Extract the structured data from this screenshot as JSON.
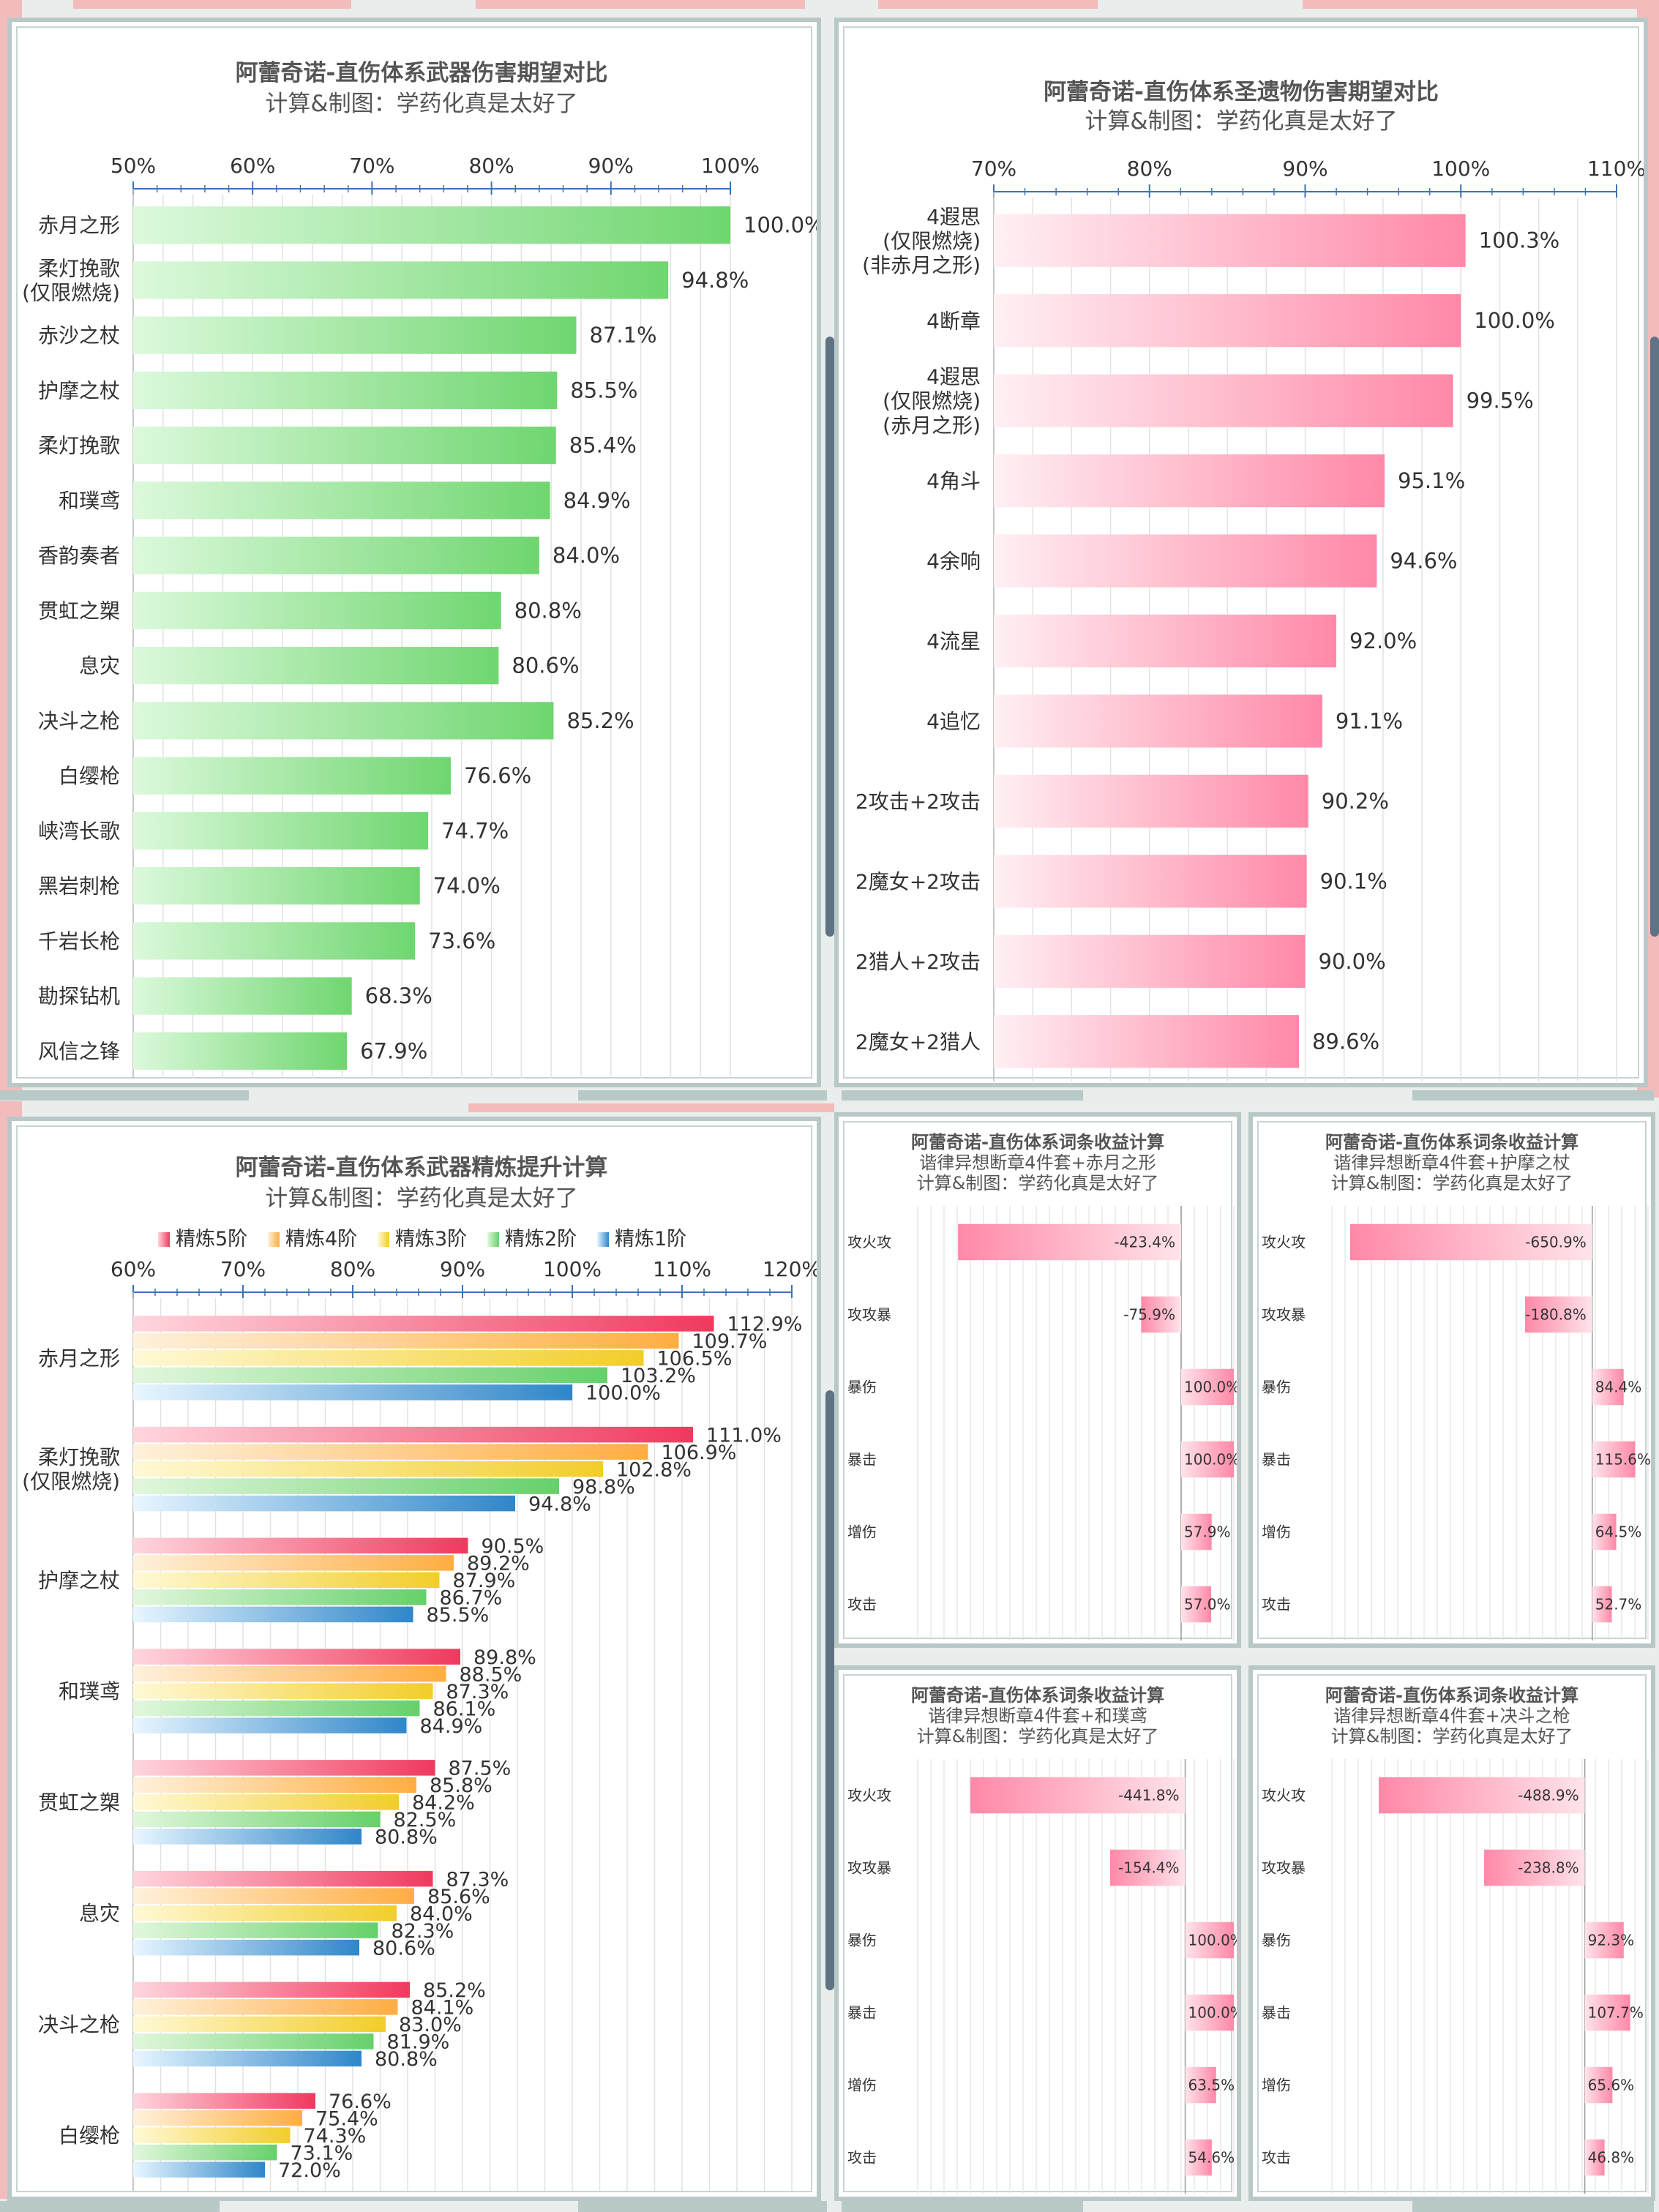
{
  "colors": {
    "green_start": "#dcf9dc",
    "green_end": "#6fd66f",
    "pink_start": "#fff0f3",
    "pink_end": "#ff88a8",
    "refine": {
      "r5": [
        "#ffd6de",
        "#f0395e"
      ],
      "r4": [
        "#fff1dc",
        "#ffad42"
      ],
      "r3": [
        "#fff9d6",
        "#f2cd2a"
      ],
      "r2": [
        "#e2f7dd",
        "#66d06a"
      ],
      "r1": [
        "#e8f6ff",
        "#2f86c9"
      ]
    },
    "axis": "#3a73b8",
    "grid": "#e2e2e2"
  },
  "chart_data": [
    {
      "id": "weapon",
      "type": "bar",
      "orientation": "horizontal",
      "title": "阿蕾奇诺-直伤体系武器伤害期望对比",
      "subtitle": "计算&制图：学药化真是太好了",
      "xlim": [
        50,
        100
      ],
      "ticks": [
        50,
        60,
        70,
        80,
        90,
        100
      ],
      "tick_labels": [
        "50%",
        "60%",
        "70%",
        "80%",
        "90%",
        "100%"
      ],
      "categories": [
        "赤月之形",
        "柔灯挽歌\n(仅限燃烧)",
        "赤沙之杖",
        "护摩之杖",
        "柔灯挽歌",
        "和璞鸢",
        "香韵奏者",
        "贯虹之槊",
        "息灾",
        "决斗之枪",
        "白缨枪",
        "峡湾长歌",
        "黑岩刺枪",
        "千岩长枪",
        "勘探钻机",
        "风信之锋"
      ],
      "values": [
        100.0,
        94.8,
        87.1,
        85.5,
        85.4,
        84.9,
        84.0,
        80.8,
        80.6,
        85.2,
        76.6,
        74.7,
        74.0,
        73.6,
        68.3,
        67.9
      ],
      "labels": [
        "100.0%",
        "94.8%",
        "87.1%",
        "85.5%",
        "85.4%",
        "84.9%",
        "84.0%",
        "80.8%",
        "80.6%",
        "85.2%",
        "76.6%",
        "74.7%",
        "74.0%",
        "73.6%",
        "68.3%",
        "67.9%"
      ]
    },
    {
      "id": "artifact",
      "type": "bar",
      "orientation": "horizontal",
      "title": "阿蕾奇诺-直伤体系圣遗物伤害期望对比",
      "subtitle": "计算&制图：学药化真是太好了",
      "xlim": [
        70,
        110
      ],
      "ticks": [
        70,
        80,
        90,
        100,
        110
      ],
      "tick_labels": [
        "70%",
        "80%",
        "90%",
        "100%",
        "110%"
      ],
      "categories": [
        "4遐思\n(仅限燃烧)\n(非赤月之形)",
        "4断章",
        "4遐思\n(仅限燃烧)\n(赤月之形)",
        "4角斗",
        "4余响",
        "4流星",
        "4追忆",
        "2攻击+2攻击",
        "2魔女+2攻击",
        "2猎人+2攻击",
        "2魔女+2猎人"
      ],
      "values": [
        100.3,
        100.0,
        99.5,
        95.1,
        94.6,
        92.0,
        91.1,
        90.2,
        90.1,
        90.0,
        89.6
      ],
      "labels": [
        "100.3%",
        "100.0%",
        "99.5%",
        "95.1%",
        "94.6%",
        "92.0%",
        "91.1%",
        "90.2%",
        "90.1%",
        "90.0%",
        "89.6%"
      ]
    },
    {
      "id": "refine",
      "type": "bar",
      "orientation": "horizontal",
      "title": "阿蕾奇诺-直伤体系武器精炼提升计算",
      "subtitle": "计算&制图：学药化真是太好了",
      "xlim": [
        60,
        120
      ],
      "ticks": [
        60,
        70,
        80,
        90,
        100,
        110,
        120
      ],
      "tick_labels": [
        "60%",
        "70%",
        "80%",
        "90%",
        "100%",
        "110%",
        "120%"
      ],
      "categories": [
        "赤月之形",
        "柔灯挽歌\n(仅限燃烧)",
        "护摩之杖",
        "和璞鸢",
        "贯虹之槊",
        "息灾",
        "决斗之枪",
        "白缨枪"
      ],
      "series": [
        {
          "name": "精炼5阶",
          "key": "r5",
          "values": [
            112.9,
            111.0,
            90.5,
            89.8,
            87.5,
            87.3,
            85.2,
            76.6
          ],
          "labels": [
            "112.9%",
            "111.0%",
            "90.5%",
            "89.8%",
            "87.5%",
            "87.3%",
            "85.2%",
            "76.6%"
          ]
        },
        {
          "name": "精炼4阶",
          "key": "r4",
          "values": [
            109.7,
            106.9,
            89.2,
            88.5,
            85.8,
            85.6,
            84.1,
            75.4
          ],
          "labels": [
            "109.7%",
            "106.9%",
            "89.2%",
            "88.5%",
            "85.8%",
            "85.6%",
            "84.1%",
            "75.4%"
          ]
        },
        {
          "name": "精炼3阶",
          "key": "r3",
          "values": [
            106.5,
            102.8,
            87.9,
            87.3,
            84.2,
            84.0,
            83.0,
            74.3
          ],
          "labels": [
            "106.5%",
            "102.8%",
            "87.9%",
            "87.3%",
            "84.2%",
            "84.0%",
            "83.0%",
            "74.3%"
          ]
        },
        {
          "name": "精炼2阶",
          "key": "r2",
          "values": [
            103.2,
            98.8,
            86.7,
            86.1,
            82.5,
            82.3,
            81.9,
            73.1
          ],
          "labels": [
            "103.2%",
            "98.8%",
            "86.7%",
            "86.1%",
            "82.5%",
            "82.3%",
            "81.9%",
            "73.1%"
          ]
        },
        {
          "name": "精炼1阶",
          "key": "r1",
          "values": [
            100.0,
            94.8,
            85.5,
            84.9,
            80.8,
            80.6,
            80.8,
            72.0
          ],
          "labels": [
            "100.0%",
            "94.8%",
            "85.5%",
            "84.9%",
            "80.8%",
            "80.6%",
            "80.8%",
            "72.0%"
          ]
        }
      ]
    },
    {
      "id": "sub_moon",
      "type": "bar",
      "orientation": "horizontal",
      "title": "阿蕾奇诺-直伤体系词条收益计算",
      "subtitle1": "谐律异想断章4件套+赤月之形",
      "subtitle2": "计算&制图：学药化真是太好了",
      "xlim": [
        -500,
        100
      ],
      "categories": [
        "攻火攻",
        "攻攻暴",
        "暴伤",
        "暴击",
        "增伤",
        "攻击"
      ],
      "values": [
        -423.4,
        -75.9,
        100.0,
        100.0,
        57.9,
        57.0
      ],
      "labels": [
        "-423.4%",
        "-75.9%",
        "100.0%",
        "100.0%",
        "57.9%",
        "57.0%"
      ]
    },
    {
      "id": "sub_homa",
      "type": "bar",
      "orientation": "horizontal",
      "title": "阿蕾奇诺-直伤体系词条收益计算",
      "subtitle1": "谐律异想断章4件套+护摩之杖",
      "subtitle2": "计算&制图：学药化真是太好了",
      "xlim": [
        -700,
        150
      ],
      "categories": [
        "攻火攻",
        "攻攻暴",
        "暴伤",
        "暴击",
        "增伤",
        "攻击"
      ],
      "values": [
        -650.9,
        -180.8,
        84.4,
        115.6,
        64.5,
        52.7
      ],
      "labels": [
        "-650.9%",
        "-180.8%",
        "84.4%",
        "115.6%",
        "64.5%",
        "52.7%"
      ]
    },
    {
      "id": "sub_jade",
      "type": "bar",
      "orientation": "horizontal",
      "title": "阿蕾奇诺-直伤体系词条收益计算",
      "subtitle1": "谐律异想断章4件套+和璞鸢",
      "subtitle2": "计算&制图：学药化真是太好了",
      "xlim": [
        -550,
        100
      ],
      "categories": [
        "攻火攻",
        "攻攻暴",
        "暴伤",
        "暴击",
        "增伤",
        "攻击"
      ],
      "values": [
        -441.8,
        -154.4,
        100.0,
        100.0,
        63.5,
        54.6
      ],
      "labels": [
        "-441.8%",
        "-154.4%",
        "100.0%",
        "100.0%",
        "63.5%",
        "54.6%"
      ]
    },
    {
      "id": "sub_duel",
      "type": "bar",
      "orientation": "horizontal",
      "title": "阿蕾奇诺-直伤体系词条收益计算",
      "subtitle1": "谐律异想断章4件套+决斗之枪",
      "subtitle2": "计算&制图：学药化真是太好了",
      "xlim": [
        -600,
        150
      ],
      "categories": [
        "攻火攻",
        "攻攻暴",
        "暴伤",
        "暴击",
        "增伤",
        "攻击"
      ],
      "values": [
        -488.9,
        -238.8,
        92.3,
        107.7,
        65.6,
        46.8
      ],
      "labels": [
        "-488.9%",
        "-238.8%",
        "92.3%",
        "107.7%",
        "65.6%",
        "46.8%"
      ]
    }
  ]
}
